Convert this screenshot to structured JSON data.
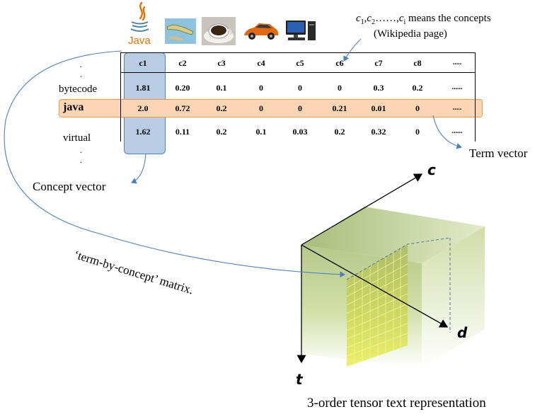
{
  "header_note": {
    "symbols": "c",
    "subscripts": [
      "1",
      "2",
      "i"
    ],
    "separator": ",",
    "ellipsis": "……,",
    "text": "means the concepts",
    "line2": "(Wikipedia page)"
  },
  "icons": {
    "java_label": "Java"
  },
  "columns": [
    "c1",
    "c2",
    "c3",
    "c4",
    "c5",
    "c6",
    "c7",
    "c8",
    "....."
  ],
  "rows": [
    {
      "label": "bytecode",
      "values": [
        "1.81",
        "0.20",
        "0.1",
        "0",
        "0",
        "0",
        "0.3",
        "0.2",
        "......"
      ]
    },
    {
      "label": "java",
      "values": [
        "2.0",
        "0.72",
        "0.2",
        "0",
        "0",
        "0.21",
        "0.01",
        "0",
        "....."
      ]
    },
    {
      "label": "virtual",
      "values": [
        "1.62",
        "0.11",
        "0.2",
        "0.1",
        "0.03",
        "0.2",
        "0.32",
        "0",
        "......"
      ]
    }
  ],
  "dots": ".",
  "labels": {
    "concept_vector": "Concept vector",
    "term_vector": "Term vector",
    "matrix": "‘term-by-concept’ matrix.",
    "caption": "3-order tensor text representation"
  },
  "axes": {
    "c": "c",
    "d": "d",
    "t": "t"
  },
  "colors": {
    "concept_column": "#b8cce4",
    "java_row": "#fcd5b5",
    "arrow": "#4f81bd",
    "tensor_face": "#c4d79b",
    "grid": "#e8ef00"
  }
}
